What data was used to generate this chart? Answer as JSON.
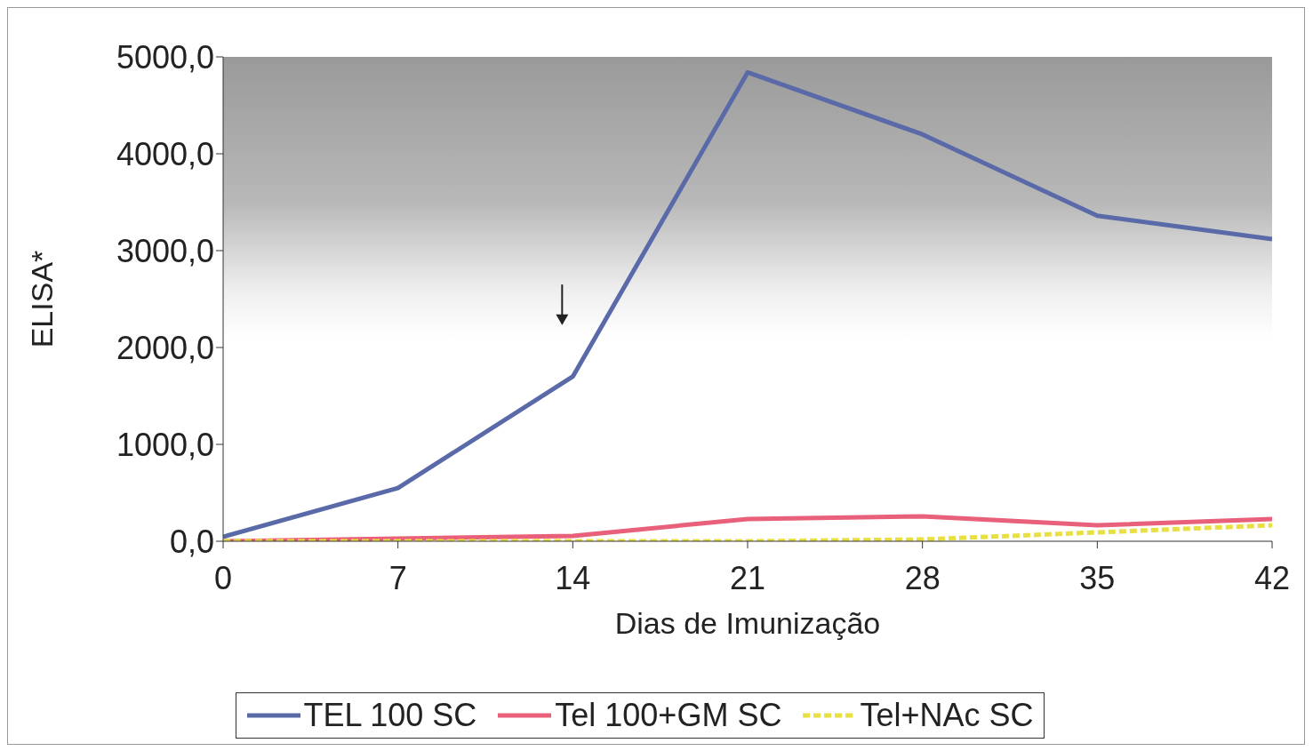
{
  "chart_data": {
    "type": "line",
    "xlabel": "Dias de Imunização",
    "ylabel": "ELISA*",
    "x": [
      0,
      7,
      14,
      21,
      28,
      35,
      42
    ],
    "series": [
      {
        "name": "TEL 100 SC",
        "color": "#5a6aa8",
        "values": [
          46,
          550,
          1700,
          4840,
          4200,
          3360,
          3120
        ],
        "line_style": "solid"
      },
      {
        "name": "Tel 100+GM SC",
        "color": "#e8607a",
        "values": [
          0,
          28,
          55,
          230,
          257,
          165,
          230
        ],
        "line_style": "solid"
      },
      {
        "name": "Tel+NAc SC",
        "color": "#e8e040",
        "values": [
          0,
          0,
          0,
          0,
          18,
          92,
          165
        ],
        "line_style": "dashed"
      }
    ],
    "xlim": [
      0,
      42
    ],
    "xticks": [
      0,
      7,
      14,
      21,
      28,
      35,
      42
    ],
    "ylim": [
      0,
      5000
    ],
    "yticks": [
      {
        "value": 0,
        "label": "0,0"
      },
      {
        "value": 1000,
        "label": "1000,0"
      },
      {
        "value": 2000,
        "label": "2000,0"
      },
      {
        "value": 3000,
        "label": "3000,0"
      },
      {
        "value": 4000,
        "label": "4000,0"
      },
      {
        "value": 5000,
        "label": "5000,0"
      }
    ],
    "grid": false,
    "legend": "bottom",
    "marker": "none"
  }
}
